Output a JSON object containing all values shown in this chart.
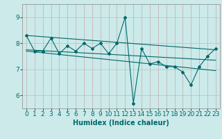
{
  "xlabel": "Humidex (Indice chaleur)",
  "background_color": "#cceaea",
  "line_color": "#006868",
  "grid_color_v": "#c8a8a8",
  "grid_color_h": "#a8c8c8",
  "xlim": [
    -0.5,
    23.5
  ],
  "ylim": [
    5.5,
    9.5
  ],
  "yticks": [
    6,
    7,
    8,
    9
  ],
  "xticks": [
    0,
    1,
    2,
    3,
    4,
    5,
    6,
    7,
    8,
    9,
    10,
    11,
    12,
    13,
    14,
    15,
    16,
    17,
    18,
    19,
    20,
    21,
    22,
    23
  ],
  "series1_x": [
    0,
    1,
    2,
    3,
    4,
    5,
    6,
    7,
    8,
    9,
    10,
    11,
    12,
    13,
    14,
    15,
    16,
    17,
    18,
    19,
    20,
    21,
    22,
    23
  ],
  "series1_y": [
    8.3,
    7.7,
    7.7,
    8.2,
    7.6,
    7.9,
    7.7,
    8.0,
    7.8,
    8.0,
    7.6,
    8.0,
    9.0,
    5.7,
    7.8,
    7.2,
    7.3,
    7.1,
    7.1,
    6.9,
    6.4,
    7.1,
    7.5,
    7.8
  ],
  "line2_x": [
    0,
    23
  ],
  "line2_y": [
    8.3,
    7.75
  ],
  "line3_x": [
    0,
    23
  ],
  "line3_y": [
    7.7,
    6.95
  ],
  "line4_x": [
    0,
    23
  ],
  "line4_y": [
    7.75,
    7.35
  ],
  "tick_fontsize": 6.5,
  "xlabel_fontsize": 7
}
